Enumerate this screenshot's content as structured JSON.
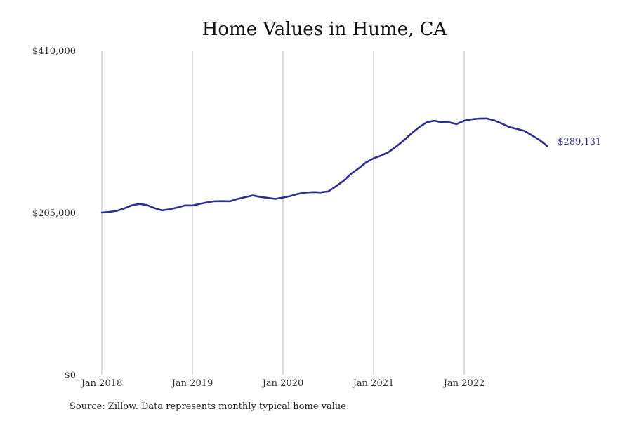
{
  "chart_data": {
    "type": "line",
    "title": "Home Values in Hume, CA",
    "xlabel": "",
    "ylabel": "",
    "x_tick_labels": [
      "Jan 2018",
      "Jan 2019",
      "Jan 2020",
      "Jan 2021",
      "Jan 2022"
    ],
    "y_tick_labels": [
      "$0",
      "$205,000",
      "$410,000"
    ],
    "y_ticks": [
      0,
      205000,
      410000
    ],
    "ylim": [
      0,
      410000
    ],
    "grid": "vertical lines at each January",
    "x_start": "Jan 2018",
    "x_end": "Dec 2022",
    "line_color": "#2e2e8f",
    "series": [
      {
        "values": [
          205000,
          205800,
          207200,
          210400,
          214200,
          216000,
          214400,
          210600,
          207800,
          209200,
          211300,
          214000,
          213900,
          216100,
          218000,
          219400,
          219500,
          219300,
          222300,
          224500,
          226700,
          224800,
          223600,
          222300,
          224000,
          226000,
          228700,
          230300,
          230900,
          230600,
          231800,
          238100,
          245000,
          254000,
          260800,
          268400,
          273700,
          277100,
          281600,
          288700,
          296300,
          305000,
          312700,
          319000,
          321200,
          319300,
          319100,
          317000,
          321200,
          323000,
          323900,
          324000,
          321500,
          317600,
          313100,
          310800,
          308300,
          302600,
          296800,
          289131
        ]
      }
    ],
    "end_value_label": "$289,131"
  },
  "source_note": "Source: Zillow. Data represents monthly typical home value"
}
